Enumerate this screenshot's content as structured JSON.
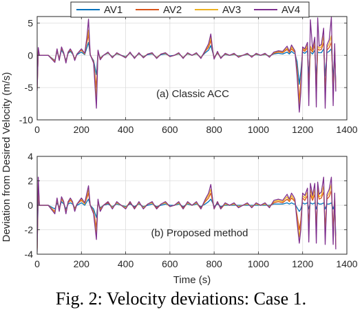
{
  "legend": [
    {
      "name": "AV1",
      "color": "#0072BD"
    },
    {
      "name": "AV2",
      "color": "#D95319"
    },
    {
      "name": "AV3",
      "color": "#EDB120"
    },
    {
      "name": "AV4",
      "color": "#7E2F8E"
    }
  ],
  "y_axis_label": "Deviation from Desired Velocity (m/s)",
  "caption": "Fig. 2: Velocity deviations: Case 1.",
  "chart_data": [
    {
      "type": "line",
      "annotation": "(a) Classic ACC",
      "xlabel": "",
      "xlim": [
        0,
        1400
      ],
      "ylim": [
        -10,
        6
      ],
      "xticks": [
        0,
        200,
        400,
        600,
        800,
        1000,
        1200,
        1400
      ],
      "yticks": [
        5,
        0,
        -5,
        -10
      ],
      "grid": true,
      "x": [
        0,
        5,
        10,
        20,
        50,
        80,
        90,
        100,
        110,
        120,
        130,
        140,
        150,
        160,
        170,
        180,
        200,
        215,
        225,
        232,
        240,
        255,
        268,
        275,
        285,
        300,
        320,
        340,
        360,
        380,
        400,
        420,
        440,
        460,
        480,
        500,
        520,
        540,
        560,
        580,
        600,
        620,
        640,
        660,
        680,
        700,
        720,
        740,
        760,
        775,
        785,
        793,
        800,
        815,
        830,
        850,
        870,
        890,
        910,
        930,
        950,
        970,
        990,
        1010,
        1030,
        1050,
        1070,
        1090,
        1110,
        1130,
        1140,
        1150,
        1160,
        1165,
        1175,
        1185,
        1192,
        1200,
        1210,
        1222,
        1228,
        1235,
        1245,
        1255,
        1262,
        1268,
        1275,
        1285,
        1295,
        1302,
        1310,
        1320,
        1330,
        1338,
        1345,
        1350
      ],
      "series": [
        {
          "name": "AV1",
          "values": [
            -4.5,
            0.5,
            0.0,
            0.0,
            0.0,
            -0.8,
            0.6,
            -0.5,
            0.8,
            0.2,
            -0.8,
            0.3,
            0.6,
            0.2,
            -0.5,
            0.1,
            0.5,
            0.1,
            1.2,
            2.0,
            0.0,
            -0.8,
            -3.0,
            0.5,
            -0.4,
            0.0,
            0.3,
            -0.2,
            0.2,
            0.0,
            -0.2,
            0.3,
            -0.3,
            0.2,
            -0.2,
            0.1,
            0.2,
            -0.3,
            0.1,
            0.2,
            -0.1,
            0.0,
            0.2,
            -0.3,
            0.2,
            0.0,
            0.2,
            -0.3,
            0.4,
            0.8,
            1.5,
            0.5,
            -0.3,
            0.3,
            -0.3,
            0.1,
            0.0,
            0.1,
            -0.1,
            0.0,
            0.1,
            -0.1,
            0.1,
            0.0,
            0.1,
            -0.1,
            0.2,
            0.3,
            0.2,
            0.5,
            0.2,
            0.6,
            0.3,
            0.3,
            -1.0,
            -4.5,
            -2.5,
            0.5,
            0.3,
            0.7,
            -3.0,
            0.5,
            0.2,
            0.8,
            -3.5,
            0.5,
            0.4,
            0.4,
            1.0,
            -3.2,
            0.4,
            0.6,
            1.0,
            -3.5,
            0.5,
            -4.2
          ]
        },
        {
          "name": "AV2",
          "values": [
            -5.0,
            0.8,
            0.0,
            0.0,
            0.0,
            -0.9,
            0.8,
            -0.6,
            1.1,
            0.3,
            -1.0,
            0.4,
            0.8,
            0.3,
            -0.6,
            0.2,
            0.8,
            0.2,
            2.0,
            3.2,
            0.1,
            -1.0,
            -5.0,
            0.6,
            -0.5,
            0.0,
            0.4,
            -0.3,
            0.3,
            0.0,
            -0.3,
            0.4,
            -0.4,
            0.3,
            -0.3,
            0.2,
            0.3,
            -0.4,
            0.2,
            0.3,
            -0.2,
            0.0,
            0.3,
            -0.4,
            0.3,
            0.0,
            0.3,
            -0.4,
            0.6,
            1.2,
            2.3,
            0.7,
            -0.4,
            0.4,
            -0.4,
            0.2,
            0.0,
            0.2,
            -0.2,
            0.0,
            0.2,
            -0.2,
            0.2,
            0.0,
            0.2,
            -0.2,
            0.3,
            0.5,
            0.4,
            0.9,
            0.4,
            1.0,
            0.6,
            0.5,
            -2.0,
            -7.0,
            -4.0,
            0.9,
            0.6,
            1.2,
            -5.0,
            1.0,
            0.5,
            1.6,
            -5.5,
            1.0,
            0.8,
            0.9,
            2.0,
            -5.5,
            0.8,
            1.2,
            2.0,
            -5.5,
            1.0,
            -5.0
          ]
        },
        {
          "name": "AV3",
          "values": [
            -5.2,
            1.0,
            0.0,
            0.0,
            0.0,
            -1.0,
            0.9,
            -0.7,
            1.2,
            0.3,
            -1.1,
            0.5,
            0.9,
            0.3,
            -0.7,
            0.2,
            0.9,
            0.2,
            2.4,
            3.9,
            0.1,
            -1.1,
            -6.5,
            0.7,
            -0.6,
            0.0,
            0.4,
            -0.3,
            0.3,
            0.0,
            -0.3,
            0.4,
            -0.4,
            0.3,
            -0.3,
            0.2,
            0.3,
            -0.4,
            0.2,
            0.3,
            -0.2,
            0.0,
            0.3,
            -0.4,
            0.3,
            0.0,
            0.3,
            -0.4,
            0.7,
            1.5,
            2.8,
            0.8,
            -0.5,
            0.5,
            -0.4,
            0.2,
            0.0,
            0.2,
            -0.2,
            0.0,
            0.2,
            -0.2,
            0.2,
            0.0,
            0.2,
            -0.2,
            0.4,
            0.6,
            0.5,
            1.1,
            0.5,
            1.3,
            0.8,
            0.6,
            -2.6,
            -8.0,
            -4.8,
            1.1,
            0.8,
            1.6,
            -6.4,
            1.4,
            0.7,
            2.2,
            -6.8,
            1.4,
            1.1,
            1.3,
            3.0,
            -6.8,
            1.2,
            1.8,
            3.0,
            -6.5,
            1.4,
            -5.3
          ]
        },
        {
          "name": "AV4",
          "values": [
            -5.5,
            1.2,
            0.0,
            0.0,
            0.0,
            -1.1,
            1.0,
            -0.8,
            1.3,
            0.4,
            -1.2,
            0.5,
            1.0,
            0.4,
            -0.8,
            0.2,
            1.0,
            0.3,
            2.8,
            5.6,
            0.1,
            -1.2,
            -8.2,
            0.8,
            -0.7,
            0.0,
            0.5,
            -0.4,
            0.4,
            0.0,
            -0.4,
            0.5,
            -0.5,
            0.4,
            -0.4,
            0.2,
            0.4,
            -0.5,
            0.2,
            0.4,
            -0.2,
            0.0,
            0.4,
            -0.5,
            0.4,
            0.0,
            0.4,
            -0.5,
            0.8,
            1.8,
            3.3,
            0.9,
            -0.6,
            0.6,
            -0.5,
            0.3,
            0.0,
            0.3,
            -0.3,
            0.0,
            0.3,
            -0.3,
            0.3,
            0.0,
            0.3,
            -0.3,
            0.5,
            0.7,
            0.6,
            1.4,
            0.6,
            1.6,
            1.0,
            0.7,
            -3.2,
            -8.8,
            -5.8,
            1.3,
            1.0,
            2.0,
            -7.8,
            5.5,
            0.9,
            2.8,
            -8.0,
            5.8,
            1.4,
            1.7,
            4.2,
            -8.2,
            1.6,
            2.4,
            5.9,
            -7.8,
            1.8,
            -5.6
          ]
        }
      ]
    },
    {
      "type": "line",
      "annotation": "(b) Proposed method",
      "xlabel": "Time (s)",
      "xlim": [
        0,
        1400
      ],
      "ylim": [
        -4,
        4
      ],
      "xticks": [
        0,
        200,
        400,
        600,
        800,
        1000,
        1200,
        1400
      ],
      "yticks": [
        4,
        2,
        0,
        -2,
        -4
      ],
      "grid": true,
      "x": [
        0,
        5,
        10,
        20,
        50,
        80,
        90,
        100,
        110,
        120,
        130,
        140,
        150,
        160,
        170,
        180,
        200,
        215,
        225,
        232,
        240,
        255,
        268,
        275,
        285,
        300,
        320,
        340,
        360,
        380,
        400,
        420,
        440,
        460,
        480,
        500,
        520,
        540,
        560,
        580,
        600,
        620,
        640,
        660,
        680,
        700,
        720,
        740,
        760,
        775,
        785,
        793,
        800,
        815,
        830,
        850,
        870,
        890,
        910,
        930,
        950,
        970,
        990,
        1010,
        1030,
        1050,
        1070,
        1090,
        1110,
        1130,
        1140,
        1150,
        1160,
        1165,
        1175,
        1185,
        1192,
        1200,
        1210,
        1222,
        1228,
        1235,
        1245,
        1255,
        1262,
        1268,
        1275,
        1285,
        1295,
        1302,
        1310,
        1320,
        1330,
        1338,
        1345,
        1350
      ],
      "series": [
        {
          "name": "AV1",
          "values": [
            -3.0,
            0.5,
            0.0,
            0.0,
            0.0,
            -0.3,
            0.2,
            -0.2,
            0.3,
            0.1,
            -0.3,
            0.1,
            0.2,
            0.1,
            -0.2,
            0.0,
            0.2,
            0.0,
            0.3,
            0.5,
            0.0,
            -0.3,
            -1.0,
            0.2,
            -0.2,
            0.0,
            0.1,
            -0.1,
            0.1,
            0.0,
            -0.1,
            0.1,
            -0.1,
            0.1,
            -0.1,
            0.0,
            0.1,
            -0.1,
            0.0,
            0.1,
            0.0,
            0.0,
            0.1,
            -0.1,
            0.1,
            0.0,
            0.1,
            -0.1,
            0.1,
            0.3,
            0.5,
            0.2,
            -0.1,
            0.1,
            -0.1,
            0.0,
            0.0,
            0.0,
            0.0,
            0.0,
            0.0,
            0.0,
            0.0,
            0.0,
            0.0,
            0.0,
            0.1,
            0.1,
            0.1,
            0.2,
            0.1,
            0.2,
            0.1,
            0.1,
            -0.2,
            -0.5,
            -0.3,
            0.2,
            0.1,
            0.2,
            -0.3,
            0.2,
            0.1,
            0.2,
            -0.3,
            0.2,
            0.1,
            0.1,
            0.2,
            -0.3,
            0.1,
            0.1,
            0.2,
            -0.3,
            0.1,
            -2.5
          ]
        },
        {
          "name": "AV2",
          "values": [
            -3.5,
            1.5,
            0.0,
            0.0,
            0.0,
            -0.5,
            0.4,
            -0.3,
            0.5,
            0.2,
            -0.5,
            0.2,
            0.4,
            0.2,
            -0.3,
            0.1,
            0.4,
            0.1,
            0.6,
            1.0,
            0.0,
            -0.5,
            -1.8,
            0.3,
            -0.3,
            0.0,
            0.2,
            -0.2,
            0.2,
            0.0,
            -0.2,
            0.2,
            -0.2,
            0.2,
            -0.2,
            0.1,
            0.2,
            -0.2,
            0.1,
            0.2,
            -0.1,
            0.0,
            0.2,
            -0.2,
            0.2,
            0.0,
            0.2,
            -0.2,
            0.3,
            0.6,
            1.0,
            0.3,
            -0.2,
            0.2,
            -0.2,
            0.1,
            0.0,
            0.1,
            -0.1,
            0.0,
            0.1,
            -0.1,
            0.1,
            0.0,
            0.1,
            -0.1,
            0.2,
            0.3,
            0.2,
            0.5,
            0.3,
            0.6,
            0.4,
            0.3,
            -0.8,
            -2.0,
            -1.2,
            0.6,
            0.4,
            0.8,
            -1.6,
            0.9,
            0.4,
            0.9,
            -1.8,
            1.0,
            0.5,
            0.6,
            1.1,
            -1.8,
            0.5,
            0.7,
            1.2,
            -1.9,
            0.6,
            -3.2
          ]
        },
        {
          "name": "AV3",
          "values": [
            -3.6,
            1.9,
            0.0,
            0.0,
            0.0,
            -0.6,
            0.5,
            -0.4,
            0.6,
            0.2,
            -0.6,
            0.3,
            0.5,
            0.2,
            -0.4,
            0.1,
            0.5,
            0.1,
            0.8,
            1.3,
            0.0,
            -0.6,
            -2.3,
            0.4,
            -0.4,
            0.0,
            0.3,
            -0.2,
            0.2,
            0.0,
            -0.2,
            0.3,
            -0.3,
            0.2,
            -0.2,
            0.1,
            0.2,
            -0.3,
            0.1,
            0.2,
            -0.1,
            0.0,
            0.2,
            -0.3,
            0.2,
            0.0,
            0.2,
            -0.3,
            0.4,
            0.8,
            1.3,
            0.4,
            -0.3,
            0.3,
            -0.3,
            0.1,
            0.0,
            0.1,
            -0.1,
            0.0,
            0.1,
            -0.1,
            0.1,
            0.0,
            0.1,
            -0.1,
            0.3,
            0.4,
            0.3,
            0.7,
            0.4,
            0.8,
            0.5,
            0.4,
            -1.1,
            -2.6,
            -1.6,
            0.8,
            0.6,
            1.1,
            -2.3,
            1.3,
            0.6,
            1.3,
            -2.4,
            1.4,
            0.7,
            0.8,
            1.6,
            -2.5,
            0.7,
            1.0,
            1.7,
            -2.6,
            0.8,
            -3.4
          ]
        },
        {
          "name": "AV4",
          "values": [
            -3.8,
            2.3,
            0.0,
            0.0,
            0.0,
            -0.7,
            0.6,
            -0.5,
            0.7,
            0.3,
            -0.7,
            0.3,
            0.6,
            0.3,
            -0.5,
            0.1,
            0.6,
            0.2,
            1.0,
            1.6,
            0.0,
            -0.7,
            -2.8,
            0.5,
            -0.5,
            0.0,
            0.3,
            -0.3,
            0.3,
            0.0,
            -0.3,
            0.3,
            -0.3,
            0.3,
            -0.3,
            0.1,
            0.3,
            -0.3,
            0.1,
            0.3,
            -0.1,
            0.0,
            0.3,
            -0.3,
            0.3,
            0.0,
            0.3,
            -0.3,
            0.5,
            1.0,
            1.7,
            0.5,
            -0.3,
            0.3,
            -0.3,
            0.2,
            0.0,
            0.2,
            -0.2,
            0.0,
            0.2,
            -0.2,
            0.2,
            0.0,
            0.2,
            -0.2,
            0.4,
            0.5,
            0.4,
            0.9,
            0.5,
            1.0,
            0.7,
            0.5,
            -1.4,
            -3.1,
            -2.0,
            1.0,
            0.8,
            1.4,
            -3.0,
            1.8,
            0.8,
            1.8,
            -3.1,
            1.9,
            0.9,
            1.1,
            2.3,
            -3.2,
            0.9,
            1.3,
            2.3,
            -3.2,
            1.0,
            -3.6
          ]
        }
      ]
    }
  ]
}
